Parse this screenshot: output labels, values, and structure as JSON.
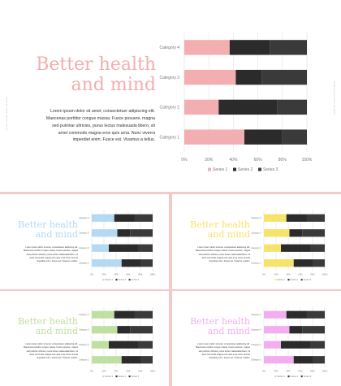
{
  "slides": [
    {
      "id": "main",
      "title_line1": "Better health",
      "title_line2": "and mind",
      "paragraph": "Lorem ipsum dolor sit amet, consectetuer adipiscing elit. Maecenas porttitor congue massa. Fusce posuere, magna sed pulvinar ultricies, purus lectus malesuada libero, sit amet commodo magna eros quis urna. Nunc viverra imperdiet enim. Fusce est. Vivamus a tellus.",
      "accent": "#f2aeb0",
      "side_text": "Lorem ipsum dolor sit amet"
    },
    {
      "id": "blue",
      "title_line1": "Better health",
      "title_line2": "and mind",
      "paragraph": "Lorem ipsum dolor sit amet, consectetuer adipiscing elit. Maecenas porttitor congue massa. Fusce posuere, magna sed pulvinar ultricies, purus lectus malesuada libero, sit amet commodo magna eros quis urna. Nunc viverra imperdiet enim. Fusce est. Vivamus a tellus.",
      "accent": "#b5d9f3"
    },
    {
      "id": "yellow",
      "title_line1": "Better health",
      "title_line2": "and mind",
      "paragraph": "Lorem ipsum dolor sit amet, consectetuer adipiscing elit. Maecenas porttitor congue massa. Fusce posuere, magna sed pulvinar ultricies, purus lectus malesuada libero, sit amet commodo magna eros quis urna. Nunc viverra imperdiet enim. Fusce est. Vivamus a tellus.",
      "accent": "#f5e36a"
    },
    {
      "id": "green",
      "title_line1": "Better health",
      "title_line2": "and mind",
      "paragraph": "Lorem ipsum dolor sit amet, consectetuer adipiscing elit. Maecenas porttitor congue massa. Fusce posuere, magna sed pulvinar ultricies, purus lectus malesuada libero, sit amet commodo magna eros quis urna. Nunc viverra imperdiet enim. Fusce est. Vivamus a tellus.",
      "accent": "#bfe0a0"
    },
    {
      "id": "pink",
      "title_line1": "Better health",
      "title_line2": "and mind",
      "paragraph": "Lorem ipsum dolor sit amet, consectetuer adipiscing elit. Maecenas porttitor congue massa. Fusce posuere, magna sed pulvinar ultricies, purus lectus malesuada libero, sit amet commodo magna eros quis urna. Nunc viverra imperdiet enim. Fusce est. Vivamus a tellus.",
      "accent": "#f3aef0"
    }
  ],
  "colors": {
    "series2": "#2b2b2b",
    "series3": "#3a3a3a",
    "grid": "#dddddd",
    "axis_text": "#777777"
  },
  "chart_data": {
    "type": "bar",
    "orientation": "horizontal",
    "stacked": "percent",
    "categories": [
      "Category 1",
      "Category 2",
      "Category 3",
      "Category 4"
    ],
    "series": [
      {
        "name": "Series 1",
        "values": [
          49,
          28,
          42,
          37
        ]
      },
      {
        "name": "Series 2",
        "values": [
          31,
          48,
          21,
          33
        ]
      },
      {
        "name": "Series 3",
        "values": [
          20,
          24,
          37,
          30
        ]
      }
    ],
    "xticks": [
      "0%",
      "20%",
      "40%",
      "60%",
      "80%",
      "100%"
    ],
    "xlim": [
      0,
      100
    ],
    "grid": true,
    "legend": "bottom"
  }
}
